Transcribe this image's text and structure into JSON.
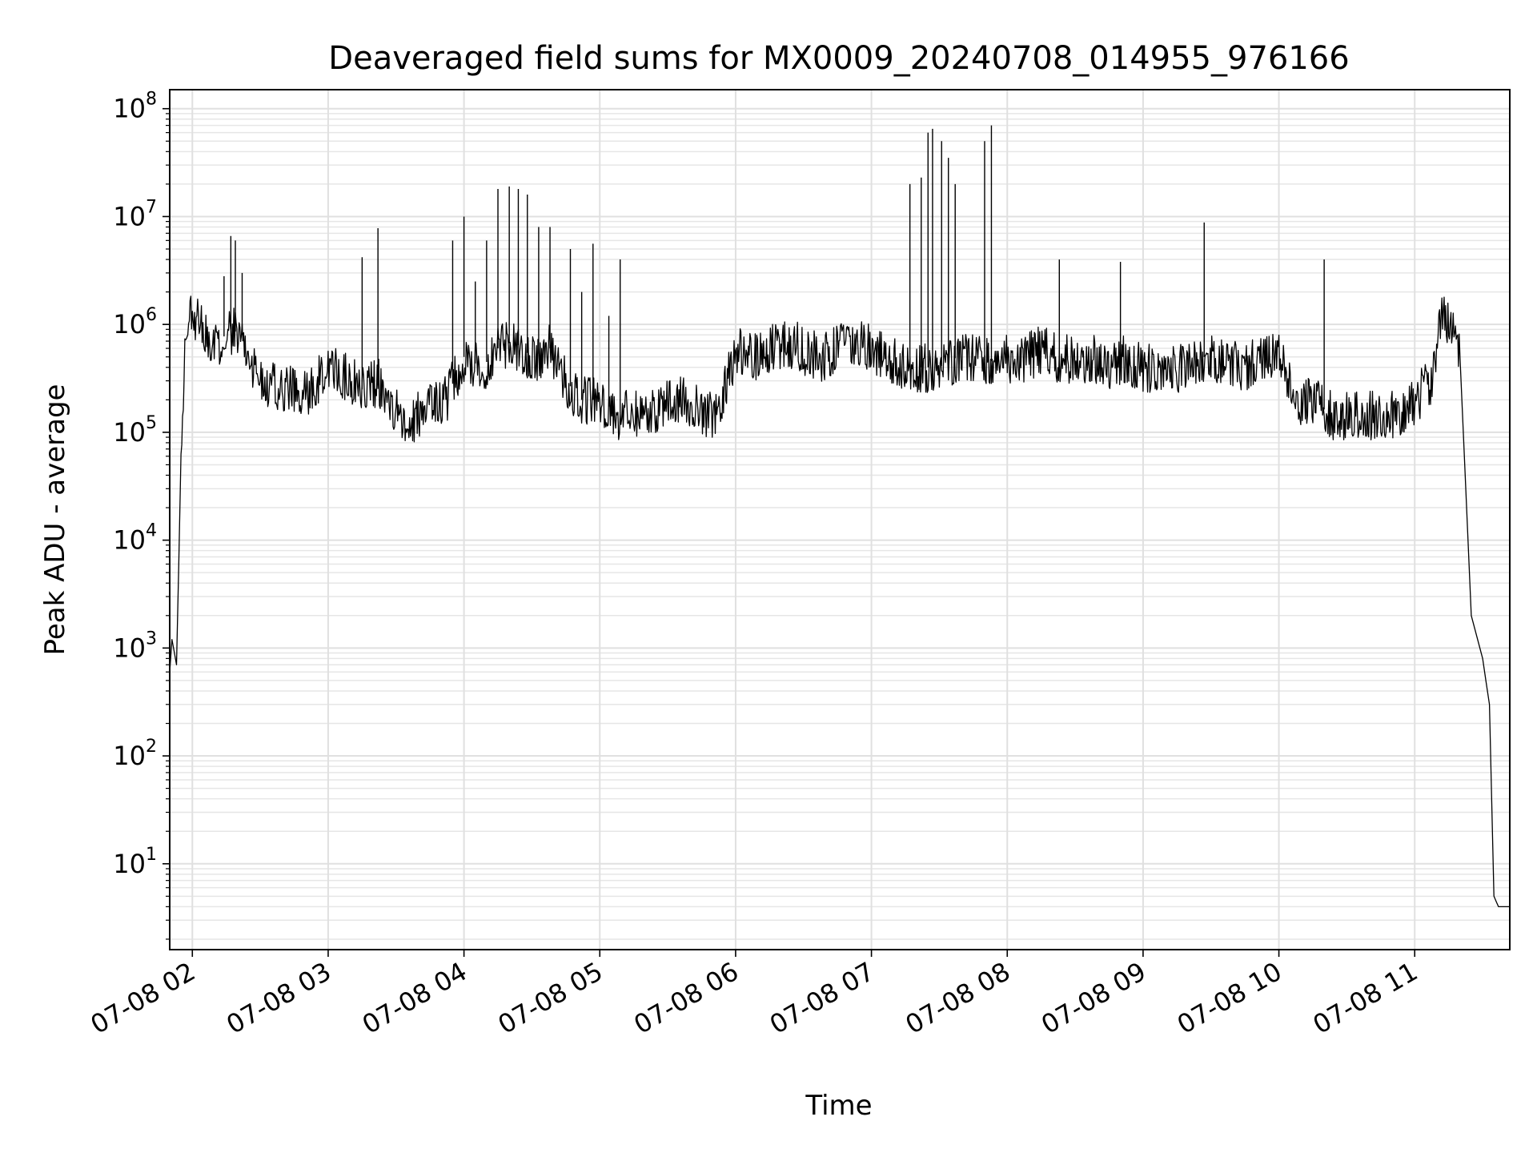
{
  "chart_data": {
    "type": "line",
    "title": "Deaveraged field sums for MX0009_20240708_014955_976166",
    "xlabel": "Time",
    "ylabel": "Peak ADU - average",
    "yscale": "log",
    "ylim": [
      1.6,
      150000000
    ],
    "xlim": [
      "07-08 01:50",
      "07-08 11:42"
    ],
    "grid": true,
    "legend": "none",
    "line_color": "#000000",
    "y_ticks": [
      {
        "base": "10",
        "exp": "1",
        "value": 10
      },
      {
        "base": "10",
        "exp": "2",
        "value": 100
      },
      {
        "base": "10",
        "exp": "3",
        "value": 1000
      },
      {
        "base": "10",
        "exp": "4",
        "value": 10000
      },
      {
        "base": "10",
        "exp": "5",
        "value": 100000
      },
      {
        "base": "10",
        "exp": "6",
        "value": 1000000
      },
      {
        "base": "10",
        "exp": "7",
        "value": 10000000
      },
      {
        "base": "10",
        "exp": "8",
        "value": 100000000
      }
    ],
    "x_ticks": [
      {
        "label": "07-08 02",
        "value": "07-08 02:00"
      },
      {
        "label": "07-08 03",
        "value": "07-08 03:00"
      },
      {
        "label": "07-08 04",
        "value": "07-08 04:00"
      },
      {
        "label": "07-08 05",
        "value": "07-08 05:00"
      },
      {
        "label": "07-08 06",
        "value": "07-08 06:00"
      },
      {
        "label": "07-08 07",
        "value": "07-08 07:00"
      },
      {
        "label": "07-08 08",
        "value": "07-08 08:00"
      },
      {
        "label": "07-08 09",
        "value": "07-08 09:00"
      },
      {
        "label": "07-08 10",
        "value": "07-08 10:00"
      },
      {
        "label": "07-08 11",
        "value": "07-08 11:00"
      }
    ],
    "series": [
      {
        "x": [
          "07-08 01:50",
          "07-08 01:51",
          "07-08 01:53",
          "07-08 01:55",
          "07-08 01:57",
          "07-08 01:59",
          "07-08 02:03",
          "07-08 02:07",
          "07-08 02:12",
          "07-08 02:17",
          "07-08 02:22",
          "07-08 02:27",
          "07-08 02:32",
          "07-08 02:38",
          "07-08 02:45",
          "07-08 02:52",
          "07-08 03:00",
          "07-08 03:08",
          "07-08 03:15",
          "07-08 03:22",
          "07-08 03:30",
          "07-08 03:38",
          "07-08 03:45",
          "07-08 03:52",
          "07-08 04:00",
          "07-08 04:08",
          "07-08 04:15",
          "07-08 04:22",
          "07-08 04:30",
          "07-08 04:38",
          "07-08 04:45",
          "07-08 04:52",
          "07-08 05:00",
          "07-08 05:08",
          "07-08 05:15",
          "07-08 05:22",
          "07-08 05:30",
          "07-08 05:38",
          "07-08 05:45",
          "07-08 05:52",
          "07-08 06:00",
          "07-08 06:08",
          "07-08 06:15",
          "07-08 06:22",
          "07-08 06:30",
          "07-08 06:38",
          "07-08 06:45",
          "07-08 06:52",
          "07-08 07:00",
          "07-08 07:08",
          "07-08 07:15",
          "07-08 07:22",
          "07-08 07:30",
          "07-08 07:38",
          "07-08 07:45",
          "07-08 07:52",
          "07-08 08:00",
          "07-08 08:08",
          "07-08 08:15",
          "07-08 08:22",
          "07-08 08:30",
          "07-08 08:38",
          "07-08 08:45",
          "07-08 08:52",
          "07-08 09:00",
          "07-08 09:08",
          "07-08 09:15",
          "07-08 09:22",
          "07-08 09:30",
          "07-08 09:38",
          "07-08 09:45",
          "07-08 09:52",
          "07-08 10:00",
          "07-08 10:08",
          "07-08 10:15",
          "07-08 10:22",
          "07-08 10:30",
          "07-08 10:38",
          "07-08 10:45",
          "07-08 10:52",
          "07-08 11:00",
          "07-08 11:07",
          "07-08 11:12",
          "07-08 11:16",
          "07-08 11:20",
          "07-08 11:25",
          "07-08 11:30",
          "07-08 11:33",
          "07-08 11:35",
          "07-08 11:37",
          "07-08 11:39",
          "07-08 11:40",
          "07-08 11:41",
          "07-08 11:42"
        ],
        "y": [
          600,
          1200,
          700,
          50000,
          1200000,
          1400000,
          1000000,
          700000,
          700000,
          900000,
          800000,
          400000,
          300000,
          250000,
          250000,
          250000,
          400000,
          350000,
          250000,
          300000,
          150000,
          130000,
          200000,
          200000,
          500000,
          400000,
          600000,
          700000,
          500000,
          600000,
          300000,
          200000,
          200000,
          150000,
          150000,
          150000,
          200000,
          200000,
          150000,
          150000,
          600000,
          500000,
          600000,
          700000,
          600000,
          500000,
          600000,
          700000,
          600000,
          500000,
          400000,
          400000,
          400000,
          500000,
          500000,
          450000,
          500000,
          500000,
          600000,
          500000,
          500000,
          500000,
          400000,
          500000,
          400000,
          400000,
          400000,
          500000,
          500000,
          500000,
          400000,
          500000,
          600000,
          200000,
          200000,
          150000,
          150000,
          150000,
          150000,
          150000,
          200000,
          300000,
          1400000,
          1000000,
          500000,
          2000,
          800,
          300,
          5,
          4,
          4,
          4,
          4,
          4
        ],
        "spikes": [
          {
            "x": "07-08 02:14",
            "y": 2800000
          },
          {
            "x": "07-08 02:17",
            "y": 6600000
          },
          {
            "x": "07-08 02:19",
            "y": 6000000
          },
          {
            "x": "07-08 02:22",
            "y": 3000000
          },
          {
            "x": "07-08 03:15",
            "y": 4200000
          },
          {
            "x": "07-08 03:22",
            "y": 7800000
          },
          {
            "x": "07-08 03:55",
            "y": 6000000
          },
          {
            "x": "07-08 04:00",
            "y": 10000000
          },
          {
            "x": "07-08 04:05",
            "y": 2500000
          },
          {
            "x": "07-08 04:10",
            "y": 6000000
          },
          {
            "x": "07-08 04:15",
            "y": 18000000
          },
          {
            "x": "07-08 04:20",
            "y": 19000000
          },
          {
            "x": "07-08 04:24",
            "y": 18000000
          },
          {
            "x": "07-08 04:28",
            "y": 16000000
          },
          {
            "x": "07-08 04:33",
            "y": 8000000
          },
          {
            "x": "07-08 04:38",
            "y": 8000000
          },
          {
            "x": "07-08 04:47",
            "y": 5000000
          },
          {
            "x": "07-08 04:52",
            "y": 2000000
          },
          {
            "x": "07-08 04:57",
            "y": 5600000
          },
          {
            "x": "07-08 05:04",
            "y": 1200000
          },
          {
            "x": "07-08 05:09",
            "y": 4000000
          },
          {
            "x": "07-08 07:17",
            "y": 20000000
          },
          {
            "x": "07-08 07:22",
            "y": 23000000
          },
          {
            "x": "07-08 07:25",
            "y": 60000000
          },
          {
            "x": "07-08 07:27",
            "y": 65000000
          },
          {
            "x": "07-08 07:31",
            "y": 50000000
          },
          {
            "x": "07-08 07:34",
            "y": 35000000
          },
          {
            "x": "07-08 07:37",
            "y": 20000000
          },
          {
            "x": "07-08 07:50",
            "y": 50000000
          },
          {
            "x": "07-08 07:53",
            "y": 70000000
          },
          {
            "x": "07-08 08:23",
            "y": 4000000
          },
          {
            "x": "07-08 08:50",
            "y": 3800000
          },
          {
            "x": "07-08 09:27",
            "y": 8800000
          },
          {
            "x": "07-08 10:20",
            "y": 4000000
          }
        ]
      }
    ]
  }
}
